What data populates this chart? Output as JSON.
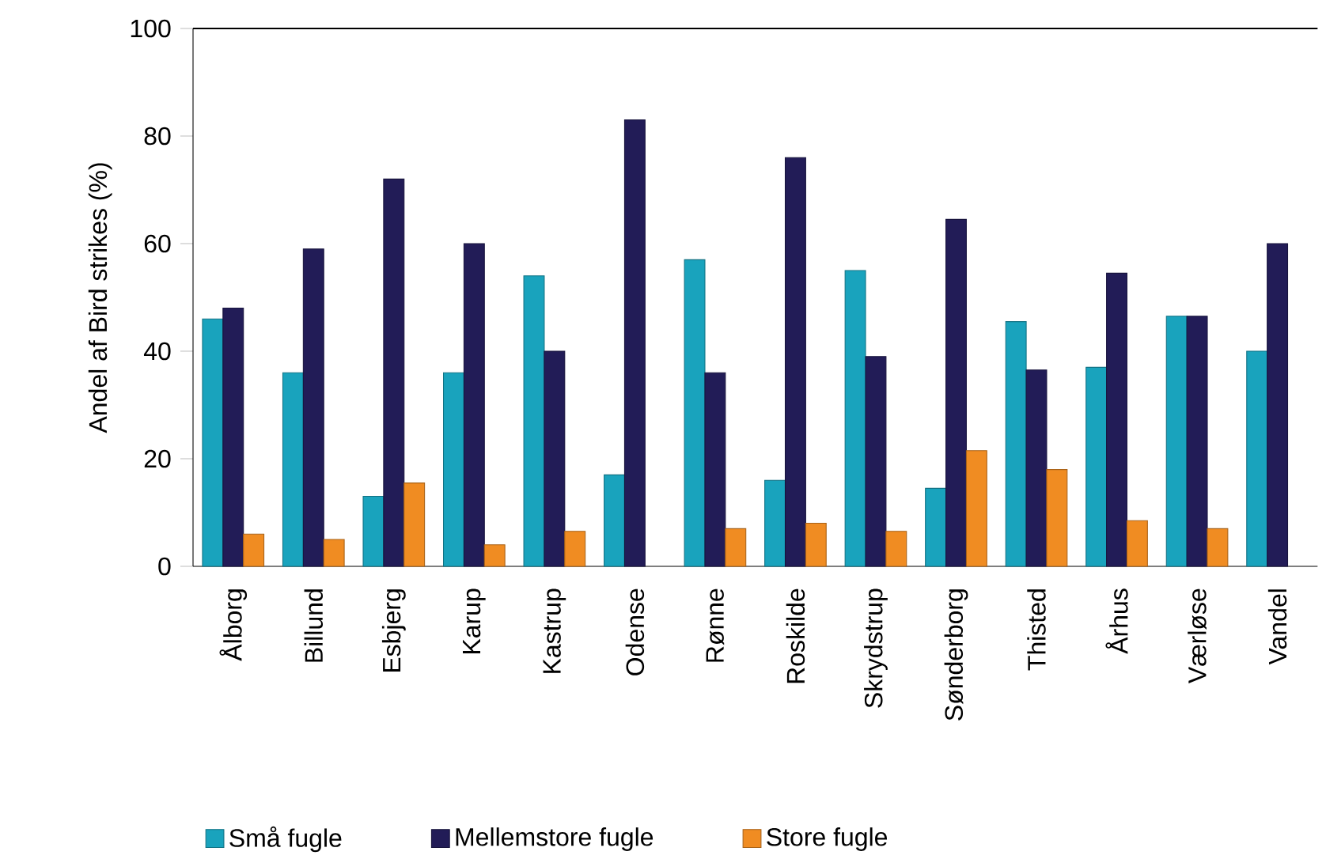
{
  "chart_data": {
    "type": "bar",
    "ylabel": "Andel af Bird strikes (%)",
    "categories": [
      "Ålborg",
      "Billund",
      "Esbjerg",
      "Karup",
      "Kastrup",
      "Odense",
      "Rønne",
      "Roskilde",
      "Skrydstrup",
      "Sønderborg",
      "Thisted",
      "Århus",
      "Værløse",
      "Vandel"
    ],
    "series": [
      {
        "name": "Små fugle",
        "color": "#19a3bd",
        "values": [
          46,
          36,
          13,
          36,
          54,
          17,
          57,
          16,
          55,
          14.5,
          45.5,
          37,
          46.5,
          40
        ]
      },
      {
        "name": "Mellemstore fugle",
        "color": "#221c57",
        "values": [
          48,
          59,
          72,
          60,
          40,
          83,
          36,
          76,
          39,
          64.5,
          36.5,
          54.5,
          46.5,
          60
        ]
      },
      {
        "name": "Store fugle",
        "color": "#f08c22",
        "values": [
          6,
          5,
          15.5,
          4,
          6.5,
          null,
          7,
          8,
          6.5,
          21.5,
          18,
          8.5,
          7,
          null
        ]
      }
    ],
    "ylim": [
      0,
      100
    ],
    "yticks": [
      0,
      20,
      40,
      60,
      80,
      100
    ],
    "grid": false,
    "legend": "bottom"
  }
}
